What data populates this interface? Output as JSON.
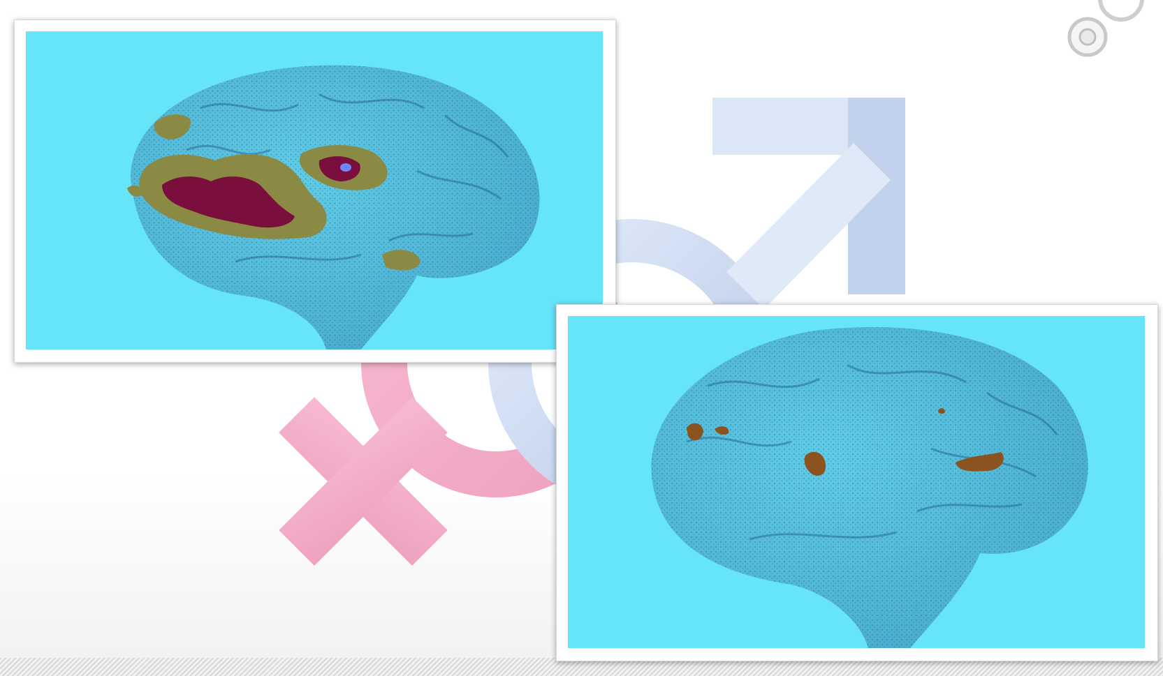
{
  "colors": {
    "background": "#ffffff",
    "photo_background": "#66e4f8",
    "brain_texture": "#2a6d97",
    "activation_outer": "#8b8a45",
    "activation_inner": "#7a0e3d",
    "activation_core": "#6e86ff",
    "female_symbol": "#f6b6cf",
    "male_symbol": "#d9e6f7"
  },
  "icons": {
    "female_symbol": "female-symbol-icon",
    "male_symbol": "male-symbol-icon",
    "decorative_circles": "decorative-circles-icon"
  },
  "images": {
    "left": {
      "subject": "brain-scan",
      "activation": "widespread"
    },
    "right": {
      "subject": "brain-scan",
      "activation": "sparse"
    }
  }
}
